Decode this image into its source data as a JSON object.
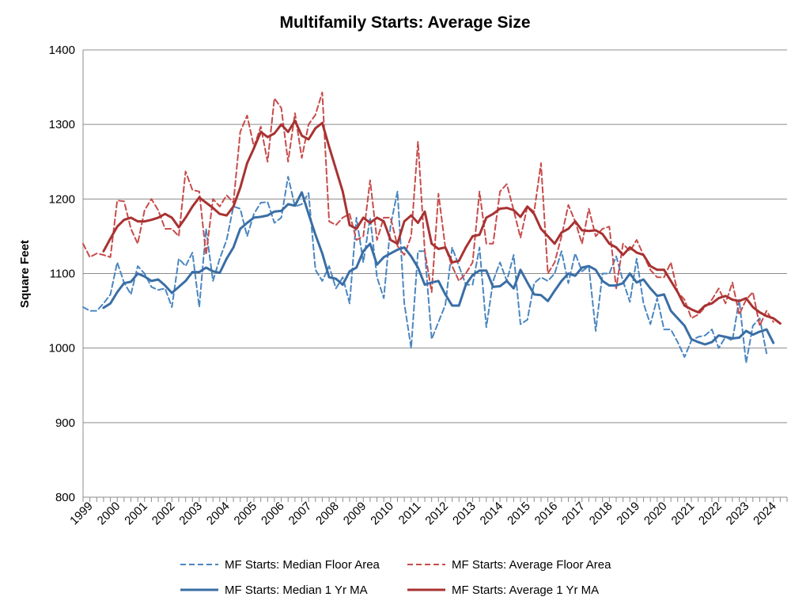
{
  "chart_data": {
    "type": "line",
    "title": "Multifamily Starts: Average Size",
    "ylabel": "Square Feet",
    "xlabel": "",
    "ylim": [
      800,
      1400
    ],
    "yticks": [
      800,
      900,
      1000,
      1100,
      1200,
      1300,
      1400
    ],
    "xlim": [
      1999.0,
      2024.75
    ],
    "xticks": [
      "1999",
      "2000",
      "2001",
      "2002",
      "2003",
      "2004",
      "2005",
      "2006",
      "2007",
      "2008",
      "2009",
      "2010",
      "2011",
      "2012",
      "2013",
      "2014",
      "2015",
      "2016",
      "2017",
      "2018",
      "2019",
      "2020",
      "2021",
      "2022",
      "2023",
      "2024"
    ],
    "grid": "horizontal",
    "legend": "bottom",
    "series": [
      {
        "name": "MF Starts: Median Floor Area",
        "color": "#4a86c0",
        "dash": "dashed",
        "width": 2,
        "x_start": 1999.0,
        "step": 0.25,
        "values": [
          1055,
          1050,
          1050,
          1060,
          1072,
          1115,
          1088,
          1072,
          1110,
          1100,
          1082,
          1078,
          1080,
          1055,
          1120,
          1110,
          1128,
          1055,
          1160,
          1090,
          1120,
          1145,
          1190,
          1187,
          1150,
          1180,
          1195,
          1196,
          1168,
          1175,
          1230,
          1190,
          1193,
          1208,
          1105,
          1090,
          1110,
          1080,
          1095,
          1060,
          1175,
          1115,
          1175,
          1095,
          1067,
          1165,
          1210,
          1060,
          1000,
          1130,
          1130,
          1012,
          1035,
          1058,
          1135,
          1110,
          1085,
          1085,
          1135,
          1028,
          1090,
          1115,
          1090,
          1125,
          1032,
          1038,
          1087,
          1095,
          1090,
          1100,
          1130,
          1087,
          1127,
          1103,
          1110,
          1023,
          1100,
          1100,
          1123,
          1090,
          1062,
          1120,
          1060,
          1032,
          1067,
          1025,
          1025,
          1008,
          988,
          1010,
          1015,
          1017,
          1025,
          1000,
          1015,
          1010,
          1065,
          980,
          1030,
          1040,
          993
        ]
      },
      {
        "name": "MF Starts: Average Floor Area",
        "color": "#c84b4b",
        "dash": "dashed",
        "width": 2,
        "x_start": 1999.0,
        "step": 0.25,
        "values": [
          1140,
          1122,
          1127,
          1125,
          1122,
          1198,
          1197,
          1160,
          1140,
          1185,
          1200,
          1185,
          1160,
          1160,
          1150,
          1237,
          1212,
          1210,
          1125,
          1200,
          1190,
          1205,
          1195,
          1290,
          1312,
          1270,
          1297,
          1250,
          1335,
          1322,
          1250,
          1315,
          1255,
          1300,
          1313,
          1343,
          1170,
          1165,
          1175,
          1180,
          1145,
          1150,
          1225,
          1145,
          1175,
          1175,
          1137,
          1125,
          1150,
          1277,
          1130,
          1075,
          1207,
          1135,
          1110,
          1090,
          1100,
          1115,
          1210,
          1140,
          1140,
          1210,
          1220,
          1185,
          1148,
          1190,
          1183,
          1248,
          1100,
          1115,
          1150,
          1192,
          1170,
          1140,
          1187,
          1150,
          1160,
          1163,
          1080,
          1140,
          1130,
          1145,
          1125,
          1105,
          1095,
          1095,
          1115,
          1075,
          1065,
          1040,
          1045,
          1055,
          1065,
          1080,
          1060,
          1088,
          1045,
          1065,
          1075,
          1030,
          1050,
          1035
        ]
      },
      {
        "name": "MF Starts: Median 1 Yr MA",
        "color": "#3a6ea5",
        "dash": "solid",
        "width": 3,
        "x_start": 1999.75,
        "step": 0.25,
        "values": [
          1054,
          1060,
          1075,
          1087,
          1089,
          1100,
          1096,
          1090,
          1092,
          1084,
          1074,
          1082,
          1090,
          1102,
          1102,
          1108,
          1103,
          1101,
          1120,
          1135,
          1160,
          1168,
          1175,
          1176,
          1178,
          1183,
          1184,
          1193,
          1191,
          1209,
          1180,
          1152,
          1127,
          1095,
          1093,
          1085,
          1103,
          1108,
          1130,
          1140,
          1112,
          1122,
          1127,
          1132,
          1135,
          1123,
          1108,
          1085,
          1088,
          1090,
          1072,
          1057,
          1057,
          1085,
          1098,
          1104,
          1104,
          1082,
          1083,
          1090,
          1080,
          1105,
          1088,
          1072,
          1071,
          1063,
          1077,
          1090,
          1100,
          1097,
          1108,
          1110,
          1105,
          1090,
          1084,
          1084,
          1087,
          1100,
          1088,
          1092,
          1080,
          1070,
          1072,
          1050,
          1040,
          1030,
          1012,
          1008,
          1005,
          1008,
          1017,
          1015,
          1013,
          1014,
          1023,
          1018,
          1022,
          1025,
          1007
        ]
      },
      {
        "name": "MF Starts: Average 1 Yr MA",
        "color": "#a83232",
        "dash": "solid",
        "width": 3,
        "x_start": 1999.75,
        "step": 0.25,
        "values": [
          1130,
          1147,
          1163,
          1172,
          1175,
          1170,
          1170,
          1172,
          1175,
          1180,
          1175,
          1162,
          1175,
          1190,
          1202,
          1195,
          1188,
          1180,
          1178,
          1190,
          1215,
          1248,
          1268,
          1290,
          1283,
          1288,
          1300,
          1290,
          1305,
          1285,
          1280,
          1295,
          1302,
          1270,
          1240,
          1210,
          1165,
          1160,
          1175,
          1168,
          1175,
          1170,
          1145,
          1140,
          1170,
          1178,
          1168,
          1183,
          1140,
          1133,
          1135,
          1115,
          1117,
          1135,
          1150,
          1152,
          1175,
          1180,
          1187,
          1188,
          1185,
          1176,
          1190,
          1180,
          1160,
          1150,
          1140,
          1155,
          1160,
          1170,
          1158,
          1157,
          1158,
          1153,
          1140,
          1135,
          1125,
          1135,
          1128,
          1125,
          1110,
          1105,
          1105,
          1090,
          1075,
          1057,
          1052,
          1048,
          1057,
          1060,
          1067,
          1070,
          1065,
          1063,
          1067,
          1055,
          1048,
          1043,
          1040,
          1033
        ]
      }
    ]
  }
}
